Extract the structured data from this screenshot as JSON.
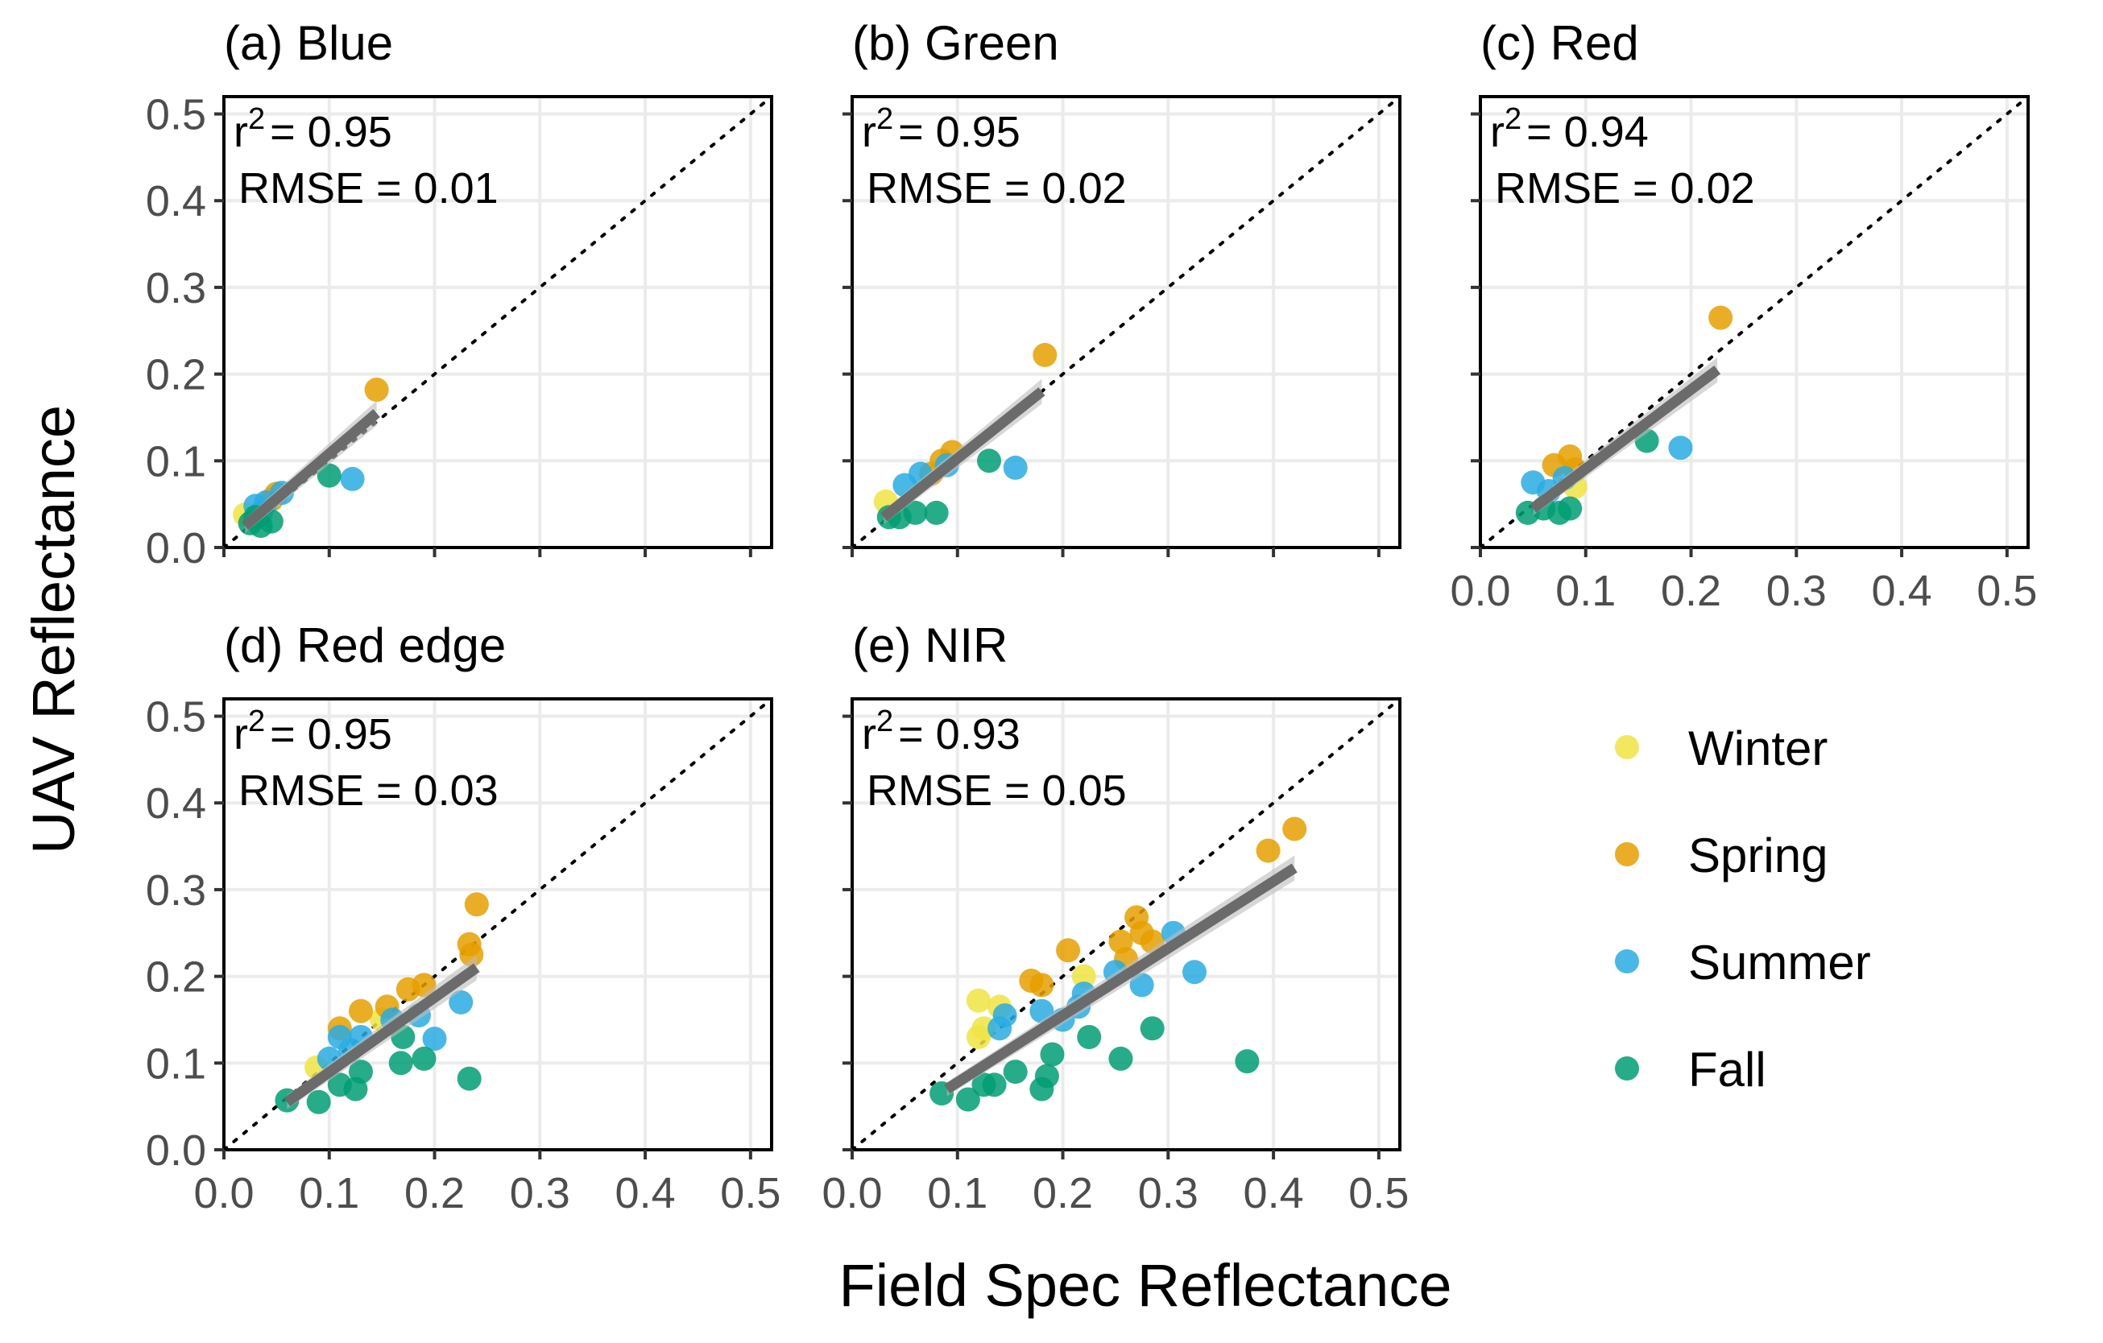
{
  "chart_data": {
    "type": "scatter",
    "xlabel": "Field Spec Reflectance",
    "ylabel": "UAV Reflectance",
    "xlim": [
      0,
      0.52
    ],
    "ylim": [
      0,
      0.52
    ],
    "ticks": [
      "0.0",
      "0.1",
      "0.2",
      "0.3",
      "0.4",
      "0.5"
    ],
    "tick_values": [
      0,
      0.1,
      0.2,
      0.3,
      0.4,
      0.5
    ],
    "grid": true,
    "reference_line": "1:1 dotted",
    "legend": {
      "placement": "bottom-right",
      "entries": [
        {
          "name": "Winter",
          "color": "#F0E442"
        },
        {
          "name": "Spring",
          "color": "#E69F00"
        },
        {
          "name": "Summer",
          "color": "#29ABE2"
        },
        {
          "name": "Fall",
          "color": "#009E73"
        }
      ]
    },
    "panels": [
      {
        "title": "(a) Blue",
        "r2_label": "r",
        "r2_sup": "2",
        "r2_value": "= 0.95",
        "rmse_text": "RMSE = 0.01",
        "fit": [
          [
            0.02,
            0.025
          ],
          [
            0.145,
            0.155
          ]
        ],
        "points": [
          {
            "season": "Winter",
            "x": 0.02,
            "y": 0.038
          },
          {
            "season": "Spring",
            "x": 0.145,
            "y": 0.182
          },
          {
            "season": "Spring",
            "x": 0.05,
            "y": 0.062
          },
          {
            "season": "Spring",
            "x": 0.045,
            "y": 0.055
          },
          {
            "season": "Summer",
            "x": 0.122,
            "y": 0.079
          },
          {
            "season": "Summer",
            "x": 0.03,
            "y": 0.048
          },
          {
            "season": "Summer",
            "x": 0.04,
            "y": 0.052
          },
          {
            "season": "Summer",
            "x": 0.055,
            "y": 0.063
          },
          {
            "season": "Summer",
            "x": 0.035,
            "y": 0.04
          },
          {
            "season": "Fall",
            "x": 0.1,
            "y": 0.083
          },
          {
            "season": "Fall",
            "x": 0.025,
            "y": 0.028
          },
          {
            "season": "Fall",
            "x": 0.035,
            "y": 0.025
          },
          {
            "season": "Fall",
            "x": 0.045,
            "y": 0.03
          },
          {
            "season": "Fall",
            "x": 0.03,
            "y": 0.035
          }
        ]
      },
      {
        "title": "(b) Green",
        "r2_label": "r",
        "r2_sup": "2",
        "r2_value": "= 0.95",
        "rmse_text": "RMSE = 0.02",
        "fit": [
          [
            0.03,
            0.035
          ],
          [
            0.18,
            0.18
          ]
        ],
        "points": [
          {
            "season": "Winter",
            "x": 0.032,
            "y": 0.053
          },
          {
            "season": "Spring",
            "x": 0.183,
            "y": 0.222
          },
          {
            "season": "Spring",
            "x": 0.095,
            "y": 0.11
          },
          {
            "season": "Spring",
            "x": 0.085,
            "y": 0.1
          },
          {
            "season": "Spring",
            "x": 0.075,
            "y": 0.085
          },
          {
            "season": "Summer",
            "x": 0.155,
            "y": 0.092
          },
          {
            "season": "Summer",
            "x": 0.05,
            "y": 0.072
          },
          {
            "season": "Summer",
            "x": 0.065,
            "y": 0.085
          },
          {
            "season": "Summer",
            "x": 0.09,
            "y": 0.095
          },
          {
            "season": "Fall",
            "x": 0.13,
            "y": 0.1
          },
          {
            "season": "Fall",
            "x": 0.035,
            "y": 0.035
          },
          {
            "season": "Fall",
            "x": 0.045,
            "y": 0.035
          },
          {
            "season": "Fall",
            "x": 0.06,
            "y": 0.04
          },
          {
            "season": "Fall",
            "x": 0.08,
            "y": 0.04
          }
        ]
      },
      {
        "title": "(c) Red",
        "r2_label": "r",
        "r2_sup": "2",
        "r2_value": "= 0.94",
        "rmse_text": "RMSE = 0.02",
        "fit": [
          [
            0.05,
            0.045
          ],
          [
            0.225,
            0.205
          ]
        ],
        "points": [
          {
            "season": "Winter",
            "x": 0.09,
            "y": 0.07
          },
          {
            "season": "Spring",
            "x": 0.228,
            "y": 0.265
          },
          {
            "season": "Spring",
            "x": 0.085,
            "y": 0.105
          },
          {
            "season": "Spring",
            "x": 0.07,
            "y": 0.095
          },
          {
            "season": "Spring",
            "x": 0.09,
            "y": 0.09
          },
          {
            "season": "Summer",
            "x": 0.19,
            "y": 0.115
          },
          {
            "season": "Summer",
            "x": 0.05,
            "y": 0.075
          },
          {
            "season": "Summer",
            "x": 0.065,
            "y": 0.065
          },
          {
            "season": "Summer",
            "x": 0.08,
            "y": 0.08
          },
          {
            "season": "Fall",
            "x": 0.158,
            "y": 0.123
          },
          {
            "season": "Fall",
            "x": 0.045,
            "y": 0.04
          },
          {
            "season": "Fall",
            "x": 0.06,
            "y": 0.045
          },
          {
            "season": "Fall",
            "x": 0.075,
            "y": 0.04
          },
          {
            "season": "Fall",
            "x": 0.085,
            "y": 0.045
          }
        ]
      },
      {
        "title": "(d) Red edge",
        "r2_label": "r",
        "r2_sup": "2",
        "r2_value": "= 0.95",
        "rmse_text": "RMSE = 0.03",
        "fit": [
          [
            0.06,
            0.055
          ],
          [
            0.24,
            0.21
          ]
        ],
        "points": [
          {
            "season": "Winter",
            "x": 0.088,
            "y": 0.095
          },
          {
            "season": "Winter",
            "x": 0.15,
            "y": 0.15
          },
          {
            "season": "Spring",
            "x": 0.24,
            "y": 0.283
          },
          {
            "season": "Spring",
            "x": 0.233,
            "y": 0.237
          },
          {
            "season": "Spring",
            "x": 0.235,
            "y": 0.225
          },
          {
            "season": "Spring",
            "x": 0.19,
            "y": 0.19
          },
          {
            "season": "Spring",
            "x": 0.175,
            "y": 0.185
          },
          {
            "season": "Spring",
            "x": 0.13,
            "y": 0.16
          },
          {
            "season": "Spring",
            "x": 0.11,
            "y": 0.14
          },
          {
            "season": "Spring",
            "x": 0.155,
            "y": 0.165
          },
          {
            "season": "Summer",
            "x": 0.225,
            "y": 0.17
          },
          {
            "season": "Summer",
            "x": 0.2,
            "y": 0.128
          },
          {
            "season": "Summer",
            "x": 0.185,
            "y": 0.155
          },
          {
            "season": "Summer",
            "x": 0.16,
            "y": 0.15
          },
          {
            "season": "Summer",
            "x": 0.13,
            "y": 0.13
          },
          {
            "season": "Summer",
            "x": 0.12,
            "y": 0.115
          },
          {
            "season": "Summer",
            "x": 0.1,
            "y": 0.105
          },
          {
            "season": "Summer",
            "x": 0.11,
            "y": 0.13
          },
          {
            "season": "Fall",
            "x": 0.233,
            "y": 0.082
          },
          {
            "season": "Fall",
            "x": 0.19,
            "y": 0.105
          },
          {
            "season": "Fall",
            "x": 0.168,
            "y": 0.1
          },
          {
            "season": "Fall",
            "x": 0.17,
            "y": 0.13
          },
          {
            "season": "Fall",
            "x": 0.13,
            "y": 0.09
          },
          {
            "season": "Fall",
            "x": 0.125,
            "y": 0.07
          },
          {
            "season": "Fall",
            "x": 0.09,
            "y": 0.055
          },
          {
            "season": "Fall",
            "x": 0.06,
            "y": 0.057
          },
          {
            "season": "Fall",
            "x": 0.11,
            "y": 0.075
          }
        ]
      },
      {
        "title": "(e) NIR",
        "r2_label": "r",
        "r2_sup": "2",
        "r2_value": "= 0.93",
        "rmse_text": "RMSE = 0.05",
        "fit": [
          [
            0.09,
            0.07
          ],
          [
            0.42,
            0.325
          ]
        ],
        "points": [
          {
            "season": "Winter",
            "x": 0.12,
            "y": 0.172
          },
          {
            "season": "Winter",
            "x": 0.12,
            "y": 0.13
          },
          {
            "season": "Winter",
            "x": 0.14,
            "y": 0.165
          },
          {
            "season": "Winter",
            "x": 0.22,
            "y": 0.2
          },
          {
            "season": "Winter",
            "x": 0.125,
            "y": 0.14
          },
          {
            "season": "Spring",
            "x": 0.42,
            "y": 0.37
          },
          {
            "season": "Spring",
            "x": 0.395,
            "y": 0.345
          },
          {
            "season": "Spring",
            "x": 0.27,
            "y": 0.268
          },
          {
            "season": "Spring",
            "x": 0.275,
            "y": 0.25
          },
          {
            "season": "Spring",
            "x": 0.285,
            "y": 0.24
          },
          {
            "season": "Spring",
            "x": 0.255,
            "y": 0.24
          },
          {
            "season": "Spring",
            "x": 0.26,
            "y": 0.22
          },
          {
            "season": "Spring",
            "x": 0.205,
            "y": 0.23
          },
          {
            "season": "Spring",
            "x": 0.17,
            "y": 0.195
          },
          {
            "season": "Spring",
            "x": 0.18,
            "y": 0.19
          },
          {
            "season": "Summer",
            "x": 0.325,
            "y": 0.205
          },
          {
            "season": "Summer",
            "x": 0.305,
            "y": 0.25
          },
          {
            "season": "Summer",
            "x": 0.275,
            "y": 0.19
          },
          {
            "season": "Summer",
            "x": 0.25,
            "y": 0.205
          },
          {
            "season": "Summer",
            "x": 0.22,
            "y": 0.18
          },
          {
            "season": "Summer",
            "x": 0.215,
            "y": 0.165
          },
          {
            "season": "Summer",
            "x": 0.18,
            "y": 0.16
          },
          {
            "season": "Summer",
            "x": 0.145,
            "y": 0.155
          },
          {
            "season": "Summer",
            "x": 0.14,
            "y": 0.14
          },
          {
            "season": "Summer",
            "x": 0.2,
            "y": 0.15
          },
          {
            "season": "Fall",
            "x": 0.375,
            "y": 0.102
          },
          {
            "season": "Fall",
            "x": 0.285,
            "y": 0.14
          },
          {
            "season": "Fall",
            "x": 0.255,
            "y": 0.105
          },
          {
            "season": "Fall",
            "x": 0.225,
            "y": 0.13
          },
          {
            "season": "Fall",
            "x": 0.19,
            "y": 0.11
          },
          {
            "season": "Fall",
            "x": 0.185,
            "y": 0.085
          },
          {
            "season": "Fall",
            "x": 0.18,
            "y": 0.07
          },
          {
            "season": "Fall",
            "x": 0.155,
            "y": 0.09
          },
          {
            "season": "Fall",
            "x": 0.135,
            "y": 0.075
          },
          {
            "season": "Fall",
            "x": 0.125,
            "y": 0.075
          },
          {
            "season": "Fall",
            "x": 0.11,
            "y": 0.058
          },
          {
            "season": "Fall",
            "x": 0.085,
            "y": 0.065
          }
        ]
      }
    ]
  }
}
